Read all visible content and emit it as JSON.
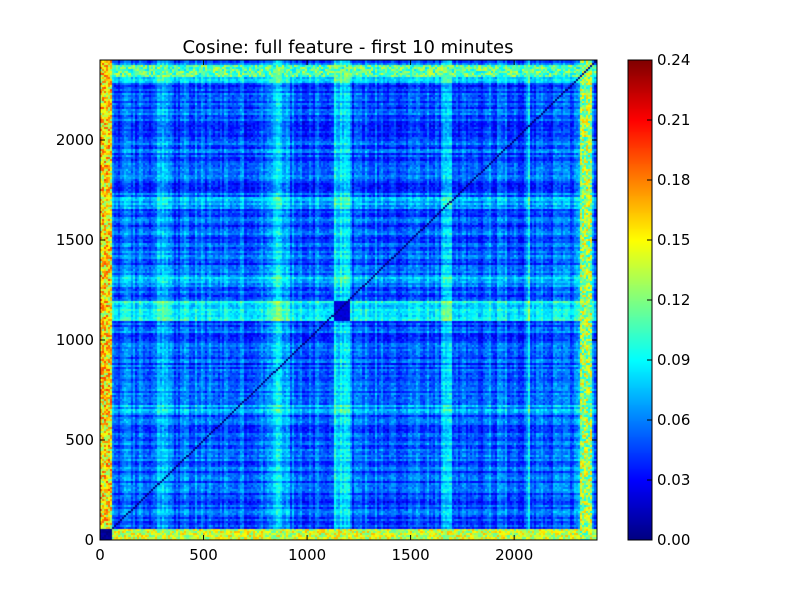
{
  "chart_data": {
    "type": "heatmap",
    "title": "Cosine: full feature - first 10 minutes",
    "xlabel": "",
    "ylabel": "",
    "xlim": [
      0,
      2400
    ],
    "ylim": [
      0,
      2400
    ],
    "x_ticks": [
      0,
      500,
      1000,
      1500,
      2000
    ],
    "y_ticks": [
      0,
      500,
      1000,
      1500,
      2000
    ],
    "x_tick_labels": [
      "0",
      "500",
      "1000",
      "1500",
      "2000"
    ],
    "y_tick_labels": [
      "0",
      "500",
      "1000",
      "1500",
      "2000"
    ],
    "colormap": "jet",
    "colorbar": {
      "min": 0.0,
      "max": 0.24,
      "ticks": [
        0.0,
        0.03,
        0.06,
        0.09,
        0.12,
        0.15,
        0.18,
        0.21,
        0.24
      ],
      "tick_labels": [
        "0.00",
        "0.03",
        "0.06",
        "0.09",
        "0.12",
        "0.15",
        "0.18",
        "0.21",
        "0.24"
      ]
    },
    "matrix_size": 2400,
    "diagonal_value": 0.0,
    "background_level": 0.045,
    "edge_bands": [
      {
        "range": [
          0,
          55
        ],
        "level": 0.14
      },
      {
        "range": [
          2320,
          2380
        ],
        "level": 0.11
      }
    ],
    "vertical_bands": [
      {
        "range": [
          1130,
          1210
        ],
        "level": 0.08
      },
      {
        "range": [
          820,
          920
        ],
        "level": 0.07
      },
      {
        "range": [
          280,
          330
        ],
        "level": 0.075
      },
      {
        "range": [
          1650,
          1700
        ],
        "level": 0.065
      },
      {
        "range": [
          2060,
          2080
        ],
        "level": 0.07
      },
      {
        "range": [
          2300,
          2360
        ],
        "level": 0.07
      }
    ],
    "horizontal_bands": [
      {
        "range": [
          1100,
          1200
        ],
        "level": 0.085
      },
      {
        "range": [
          2290,
          2360
        ],
        "level": 0.07
      },
      {
        "range": [
          1270,
          1330
        ],
        "level": 0.065
      },
      {
        "range": [
          630,
          680
        ],
        "level": 0.06
      },
      {
        "range": [
          1660,
          1720
        ],
        "level": 0.065
      },
      {
        "range": [
          1850,
          1900
        ],
        "level": 0.06
      }
    ],
    "dark_regions": [
      {
        "x": [
          1130,
          1210
        ],
        "y": [
          1100,
          1200
        ],
        "level": 0.015
      },
      {
        "x": [
          0,
          55
        ],
        "y": [
          0,
          60
        ],
        "level": 0.0
      }
    ]
  }
}
